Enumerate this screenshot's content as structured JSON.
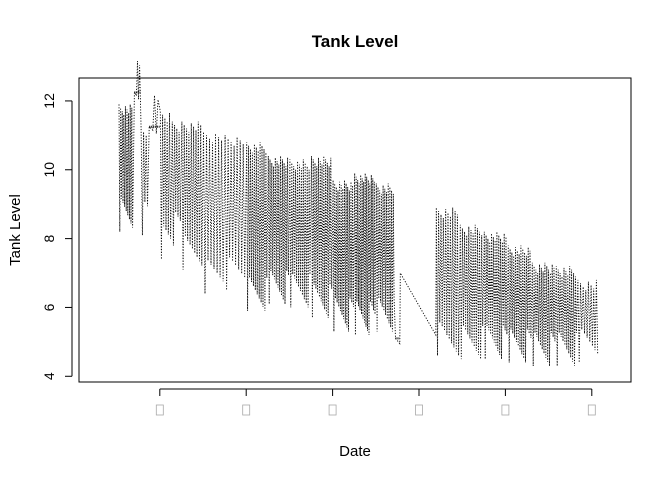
{
  "chart_data": {
    "type": "line",
    "title": "Tank Level",
    "xlabel": "Date",
    "ylabel": "Tank Level",
    "ylim": [
      3.95,
      12.55
    ],
    "yticks": [
      4,
      6,
      8,
      10,
      12
    ],
    "ytick_labels": [
      "4",
      "6",
      "8",
      "10",
      "12"
    ],
    "xlim": [
      0,
      100
    ],
    "xticks": [
      13.5,
      31.5,
      49.5,
      67.5,
      85.5,
      103.5
    ],
    "xtick_labels": [
      "",
      "",
      "",
      "",
      "",
      ""
    ],
    "line_style": "dotted",
    "series": [
      {
        "values_description_note": "",
        "segments": [
          {
            "from": 5,
            "to": 8,
            "hi": 11.9,
            "lo": 8.2,
            "n": 9
          },
          {
            "from": 8.2,
            "to": 9.5,
            "hi": 12.25,
            "lo": 12.2,
            "n": 3
          },
          {
            "from": 9.6,
            "to": 11.2,
            "hi": 11.2,
            "lo": 8.1,
            "n": 3
          },
          {
            "from": 11.3,
            "to": 13.5,
            "hi": 11.25,
            "lo": 11.2,
            "n": 3
          },
          {
            "from": 13.6,
            "to": 16.0,
            "hi": 11.7,
            "lo": 7.4,
            "n": 5
          },
          {
            "from": 16.1,
            "to": 18.0,
            "hi": 11.4,
            "lo": 7.8,
            "n": 4
          },
          {
            "from": 18.1,
            "to": 22.5,
            "hi": 11.4,
            "lo": 7.1,
            "n": 9
          },
          {
            "from": 22.6,
            "to": 27.0,
            "hi": 11.1,
            "lo": 6.4,
            "n": 7
          },
          {
            "from": 27.1,
            "to": 31.5,
            "hi": 11.0,
            "lo": 6.5,
            "n": 7
          },
          {
            "from": 31.6,
            "to": 36.0,
            "hi": 10.8,
            "lo": 5.9,
            "n": 11
          },
          {
            "from": 36.1,
            "to": 40.5,
            "hi": 10.4,
            "lo": 6.1,
            "n": 12
          },
          {
            "from": 40.6,
            "to": 45.0,
            "hi": 10.3,
            "lo": 6.0,
            "n": 11
          },
          {
            "from": 45.1,
            "to": 49.5,
            "hi": 10.4,
            "lo": 5.7,
            "n": 12
          },
          {
            "from": 49.6,
            "to": 54.0,
            "hi": 9.7,
            "lo": 5.3,
            "n": 13
          },
          {
            "from": 54.1,
            "to": 58.5,
            "hi": 9.9,
            "lo": 5.2,
            "n": 14
          },
          {
            "from": 58.6,
            "to": 62.5,
            "hi": 9.6,
            "lo": 5.3,
            "n": 11
          },
          {
            "from": 62.6,
            "to": 63.5,
            "hi": 5.1,
            "lo": 4.95,
            "n": 1
          },
          {
            "from": 63.6,
            "to": 71.0,
            "hi": 7.0,
            "lo": 5.2,
            "n": 1
          },
          {
            "from": 71.1,
            "to": 76.0,
            "hi": 8.9,
            "lo": 4.6,
            "n": 10
          },
          {
            "from": 76.1,
            "to": 81.0,
            "hi": 8.4,
            "lo": 4.5,
            "n": 11
          },
          {
            "from": 81.1,
            "to": 86.0,
            "hi": 8.2,
            "lo": 4.5,
            "n": 13
          },
          {
            "from": 86.1,
            "to": 91.0,
            "hi": 7.8,
            "lo": 4.4,
            "n": 13
          },
          {
            "from": 91.1,
            "to": 96.0,
            "hi": 7.3,
            "lo": 4.3,
            "n": 13
          },
          {
            "from": 96.1,
            "to": 100.5,
            "hi": 7.2,
            "lo": 4.3,
            "n": 11
          },
          {
            "from": 100.6,
            "to": 105.0,
            "hi": 6.8,
            "lo": 4.4,
            "n": 8
          }
        ]
      }
    ]
  }
}
